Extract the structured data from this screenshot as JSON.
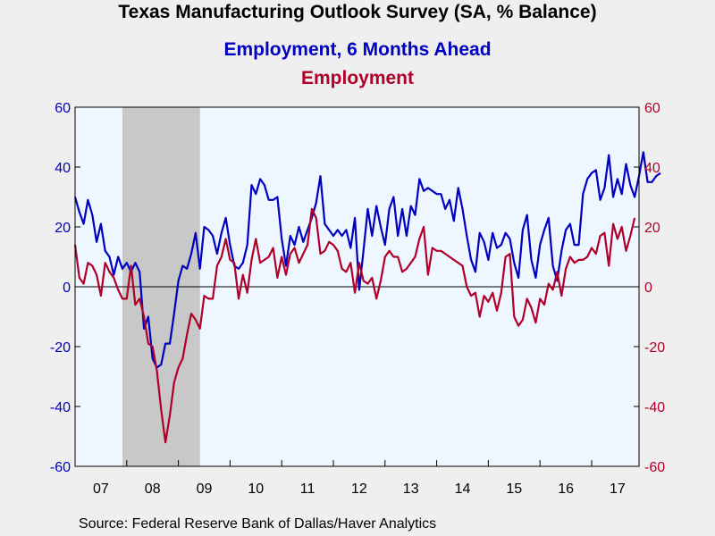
{
  "chart_data": {
    "type": "line",
    "title": "Texas Manufacturing Outlook Survey (SA, % Balance)",
    "x_tick_labels": [
      "07",
      "08",
      "09",
      "10",
      "11",
      "12",
      "13",
      "14",
      "15",
      "16",
      "17"
    ],
    "x_range": [
      2007.0,
      2017.917
    ],
    "ylim_left": [
      -60,
      60
    ],
    "ylim_right": [
      -60,
      60
    ],
    "y_ticks": [
      -60,
      -40,
      -20,
      0,
      20,
      40,
      60
    ],
    "grid": false,
    "recession_shading": {
      "start": 2007.917,
      "end": 2009.417,
      "color": "#c8c8c8"
    },
    "source": "Source:  Federal Reserve Bank of Dallas/Haver Analytics",
    "series": [
      {
        "name": "Employment, 6 Months Ahead",
        "color": "#0000c0",
        "axis": "left",
        "start": 2007.0,
        "step": 0.08333,
        "values": [
          30,
          25,
          21,
          29,
          24,
          15,
          21,
          12,
          10,
          4,
          10,
          6,
          8,
          5,
          8,
          5,
          -14,
          -10,
          -24,
          -27,
          -26,
          -19,
          -19,
          -9,
          2,
          7,
          6,
          11,
          18,
          6,
          20,
          19,
          17,
          11,
          18,
          23,
          14,
          7,
          6,
          8,
          14,
          34,
          31,
          36,
          34,
          29,
          29,
          30,
          16,
          7,
          17,
          14,
          20,
          15,
          19,
          23,
          28,
          37,
          21,
          19,
          17,
          19,
          17,
          19,
          13,
          23,
          -1,
          12,
          26,
          17,
          27,
          20,
          14,
          26,
          30,
          17,
          26,
          17,
          27,
          24,
          36,
          32,
          33,
          32,
          31,
          31,
          26,
          29,
          22,
          33,
          26,
          17,
          9,
          5,
          18,
          15,
          9,
          18,
          13,
          14,
          18,
          16,
          8,
          3,
          19,
          24,
          9,
          3,
          14,
          19,
          23,
          7,
          2,
          12,
          19,
          21,
          14,
          14,
          31,
          36,
          38,
          39,
          29,
          33,
          44,
          30,
          36,
          31,
          41,
          34,
          30,
          37,
          45,
          35,
          35,
          37,
          38
        ]
      },
      {
        "name": "Employment",
        "color": "#b0002a",
        "axis": "right",
        "start": 2007.0,
        "step": 0.08333,
        "values": [
          14,
          3,
          1,
          8,
          7,
          4,
          -3,
          8,
          5,
          3,
          -1,
          -4,
          -4,
          7,
          -6,
          -4,
          -10,
          -19,
          -20,
          -28,
          -41,
          -52,
          -43,
          -32,
          -27,
          -24,
          -16,
          -9,
          -11,
          -14,
          -3,
          -4,
          -4,
          7,
          10,
          16,
          9,
          8,
          -4,
          4,
          -2,
          9,
          16,
          8,
          9,
          10,
          13,
          3,
          10,
          4,
          11,
          13,
          8,
          11,
          14,
          26,
          23,
          11,
          12,
          15,
          14,
          12,
          6,
          5,
          8,
          -2,
          8,
          2,
          1,
          3,
          -4,
          2,
          10,
          12,
          10,
          10,
          5,
          6,
          8,
          10,
          16,
          20,
          4,
          13,
          12,
          12,
          11,
          10,
          9,
          8,
          7,
          0,
          -3,
          -2,
          -10,
          -3,
          -5,
          -2,
          -8,
          -2,
          10,
          11,
          -10,
          -13,
          -11,
          -4,
          -7,
          -12,
          -4,
          -6,
          1,
          -1,
          5,
          -3,
          6,
          10,
          8,
          9,
          9,
          10,
          13,
          11,
          17,
          18,
          7,
          21,
          16,
          20,
          12,
          17,
          23
        ]
      }
    ]
  }
}
